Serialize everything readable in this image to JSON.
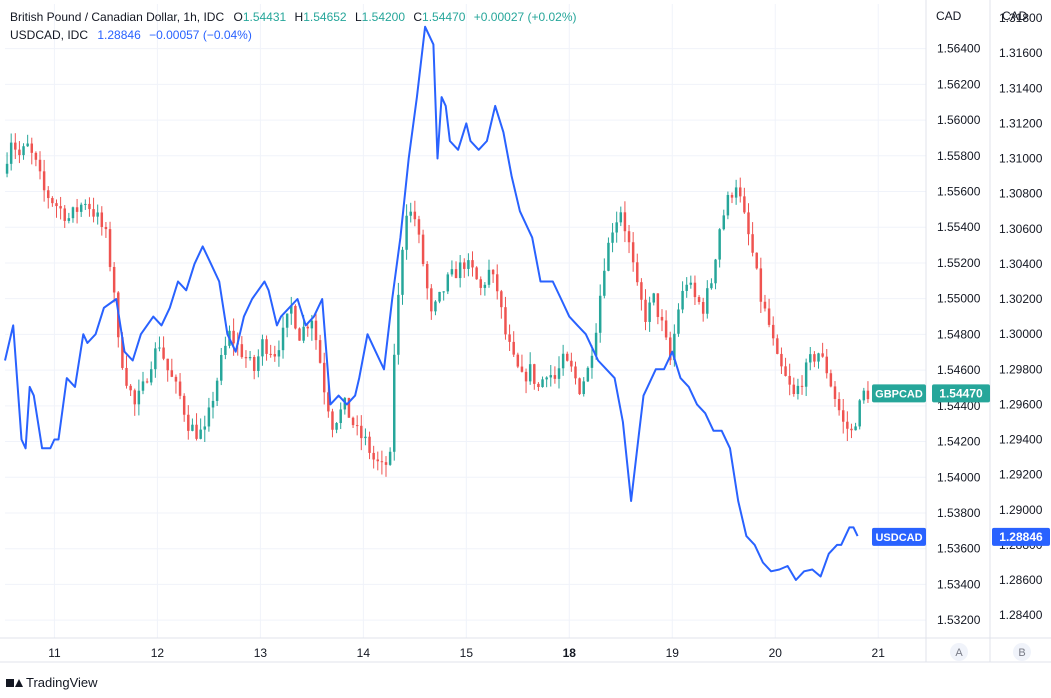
{
  "legend": {
    "symbol": "British Pound / Canadian Dollar, 1h, IDC",
    "o_key": "O",
    "o_val": "1.54431",
    "h_key": "H",
    "h_val": "1.54652",
    "l_key": "L",
    "l_val": "1.54200",
    "c_key": "C",
    "c_val": "1.54470",
    "change": "+0.00027 (+0.02%)",
    "symbol2": "USDCAD, IDC",
    "s2_val": "1.28846",
    "s2_change": "−0.00057 (−0.04%)"
  },
  "footer": {
    "brand": "TradingView"
  },
  "colors": {
    "up": "#26a69a",
    "down": "#ef5350",
    "line": "#2962ff",
    "grid": "#f0f3fa",
    "axis_text": "#131722",
    "border": "#e0e3eb"
  },
  "chart_data": {
    "type": "candlestick+line",
    "x_ticks": [
      {
        "i": 12,
        "label": "11",
        "bold": false
      },
      {
        "i": 37,
        "label": "12",
        "bold": false
      },
      {
        "i": 62,
        "label": "13",
        "bold": false
      },
      {
        "i": 87,
        "label": "14",
        "bold": false
      },
      {
        "i": 112,
        "label": "15",
        "bold": false
      },
      {
        "i": 137,
        "label": "18",
        "bold": true
      },
      {
        "i": 162,
        "label": "19",
        "bold": false
      },
      {
        "i": 187,
        "label": "20",
        "bold": false
      },
      {
        "i": 212,
        "label": "21",
        "bold": false
      }
    ],
    "axis_a": {
      "label": "CAD",
      "footer": "A",
      "min": 1.531,
      "max": 1.5665,
      "ticks": [
        "1.56400",
        "1.56200",
        "1.56000",
        "1.55800",
        "1.55600",
        "1.55400",
        "1.55200",
        "1.55000",
        "1.54800",
        "1.54600",
        "1.54400",
        "1.54200",
        "1.54000",
        "1.53800",
        "1.53600",
        "1.53400",
        "1.53200"
      ],
      "badge_name": "GBPCAD",
      "badge_value": "1.54470"
    },
    "axis_b": {
      "label": "CAD",
      "footer": "B",
      "min": 1.2827,
      "max": 1.3188,
      "ticks": [
        "1.31800",
        "1.31600",
        "1.31400",
        "1.31200",
        "1.31000",
        "1.30800",
        "1.30600",
        "1.30400",
        "1.30200",
        "1.30000",
        "1.29800",
        "1.29600",
        "1.29400",
        "1.29200",
        "1.29000",
        "1.28800",
        "1.28600",
        "1.28400"
      ],
      "badge_name": "USDCAD",
      "badge_value": "1.28846"
    },
    "series": [
      {
        "name": "British Pound / Canadian Dollar, 1h, IDC",
        "kind": "candlestick",
        "anchors": [
          [
            0,
            1.557
          ],
          [
            2,
            1.559
          ],
          [
            4,
            1.558
          ],
          [
            6,
            1.5585
          ],
          [
            8,
            1.5575
          ],
          [
            10,
            1.556
          ],
          [
            14,
            1.555
          ],
          [
            16,
            1.5545
          ],
          [
            20,
            1.5555
          ],
          [
            23,
            1.5545
          ],
          [
            25,
            1.5535
          ],
          [
            27,
            1.5505
          ],
          [
            28,
            1.5475
          ],
          [
            30,
            1.5455
          ],
          [
            32,
            1.544
          ],
          [
            34,
            1.545
          ],
          [
            36,
            1.5465
          ],
          [
            38,
            1.5475
          ],
          [
            40,
            1.546
          ],
          [
            43,
            1.5445
          ],
          [
            45,
            1.543
          ],
          [
            47,
            1.5425
          ],
          [
            49,
            1.5425
          ],
          [
            51,
            1.5445
          ],
          [
            53,
            1.5465
          ],
          [
            55,
            1.548
          ],
          [
            58,
            1.547
          ],
          [
            61,
            1.546
          ],
          [
            63,
            1.5475
          ],
          [
            66,
            1.547
          ],
          [
            68,
            1.548
          ],
          [
            70,
            1.5495
          ],
          [
            72,
            1.548
          ],
          [
            75,
            1.549
          ],
          [
            77,
            1.5465
          ],
          [
            78,
            1.545
          ],
          [
            80,
            1.543
          ],
          [
            83,
            1.544
          ],
          [
            86,
            1.5425
          ],
          [
            88,
            1.542
          ],
          [
            90,
            1.541
          ],
          [
            92,
            1.5405
          ],
          [
            94,
            1.541
          ],
          [
            95,
            1.547
          ],
          [
            96,
            1.55
          ],
          [
            97,
            1.553
          ],
          [
            98,
            1.555
          ],
          [
            100,
            1.5545
          ],
          [
            102,
            1.552
          ],
          [
            104,
            1.549
          ],
          [
            106,
            1.55
          ],
          [
            108,
            1.551
          ],
          [
            110,
            1.5515
          ],
          [
            112,
            1.552
          ],
          [
            114,
            1.5515
          ],
          [
            116,
            1.5505
          ],
          [
            118,
            1.5515
          ],
          [
            120,
            1.5505
          ],
          [
            122,
            1.548
          ],
          [
            124,
            1.5465
          ],
          [
            126,
            1.5455
          ],
          [
            128,
            1.546
          ],
          [
            130,
            1.545
          ],
          [
            132,
            1.546
          ],
          [
            134,
            1.5455
          ],
          [
            136,
            1.5465
          ],
          [
            138,
            1.546
          ],
          [
            140,
            1.545
          ],
          [
            142,
            1.546
          ],
          [
            144,
            1.5485
          ],
          [
            146,
            1.552
          ],
          [
            148,
            1.554
          ],
          [
            150,
            1.555
          ],
          [
            152,
            1.553
          ],
          [
            154,
            1.5505
          ],
          [
            156,
            1.549
          ],
          [
            158,
            1.55
          ],
          [
            160,
            1.5485
          ],
          [
            162,
            1.5465
          ],
          [
            164,
            1.5495
          ],
          [
            166,
            1.551
          ],
          [
            168,
            1.55
          ],
          [
            170,
            1.5495
          ],
          [
            172,
            1.551
          ],
          [
            174,
            1.554
          ],
          [
            176,
            1.5555
          ],
          [
            178,
            1.5565
          ],
          [
            180,
            1.5545
          ],
          [
            182,
            1.5525
          ],
          [
            184,
            1.55
          ],
          [
            186,
            1.5485
          ],
          [
            188,
            1.5465
          ],
          [
            190,
            1.5455
          ],
          [
            192,
            1.5445
          ],
          [
            194,
            1.5455
          ],
          [
            196,
            1.5465
          ],
          [
            198,
            1.547
          ],
          [
            200,
            1.546
          ],
          [
            202,
            1.5445
          ],
          [
            204,
            1.543
          ],
          [
            206,
            1.5425
          ],
          [
            208,
            1.544
          ],
          [
            209,
            1.5447
          ]
        ]
      },
      {
        "name": "USDCAD, IDC",
        "kind": "line",
        "values": [
          [
            0,
            1.2985
          ],
          [
            2,
            1.3005
          ],
          [
            4,
            1.294
          ],
          [
            5,
            1.2935
          ],
          [
            6,
            1.297
          ],
          [
            7,
            1.2965
          ],
          [
            9,
            1.2935
          ],
          [
            11,
            1.2935
          ],
          [
            12,
            1.294
          ],
          [
            13,
            1.294
          ],
          [
            15,
            1.2975
          ],
          [
            17,
            1.297
          ],
          [
            19,
            1.3
          ],
          [
            20,
            1.2995
          ],
          [
            22,
            1.3
          ],
          [
            24,
            1.3015
          ],
          [
            27,
            1.302
          ],
          [
            29,
            1.299
          ],
          [
            31,
            1.2985
          ],
          [
            33,
            1.3
          ],
          [
            36,
            1.301
          ],
          [
            38,
            1.3005
          ],
          [
            40,
            1.3015
          ],
          [
            42,
            1.303
          ],
          [
            44,
            1.3025
          ],
          [
            46,
            1.304
          ],
          [
            48,
            1.305
          ],
          [
            50,
            1.304
          ],
          [
            52,
            1.303
          ],
          [
            54,
            1.3
          ],
          [
            56,
            1.299
          ],
          [
            58,
            1.301
          ],
          [
            60,
            1.302
          ],
          [
            63,
            1.303
          ],
          [
            64,
            1.3025
          ],
          [
            66,
            1.3005
          ],
          [
            67,
            1.301
          ],
          [
            69,
            1.3015
          ],
          [
            71,
            1.302
          ],
          [
            73,
            1.3005
          ],
          [
            75,
            1.301
          ],
          [
            77,
            1.302
          ],
          [
            79,
            1.296
          ],
          [
            81,
            1.2965
          ],
          [
            83,
            1.296
          ],
          [
            85,
            1.2965
          ],
          [
            86,
            1.2975
          ],
          [
            88,
            1.3
          ],
          [
            90,
            1.299
          ],
          [
            92,
            1.298
          ],
          [
            94,
            1.302
          ],
          [
            96,
            1.3055
          ],
          [
            98,
            1.31
          ],
          [
            100,
            1.3135
          ],
          [
            102,
            1.3175
          ],
          [
            104,
            1.3165
          ],
          [
            105,
            1.31
          ],
          [
            106,
            1.3135
          ],
          [
            107,
            1.313
          ],
          [
            108,
            1.311
          ],
          [
            110,
            1.3105
          ],
          [
            112,
            1.312
          ],
          [
            113,
            1.311
          ],
          [
            115,
            1.3105
          ],
          [
            117,
            1.311
          ],
          [
            119,
            1.313
          ],
          [
            121,
            1.3115
          ],
          [
            123,
            1.309
          ],
          [
            125,
            1.307
          ],
          [
            127,
            1.306
          ],
          [
            128,
            1.3055
          ],
          [
            130,
            1.303
          ],
          [
            131,
            1.303
          ],
          [
            133,
            1.303
          ],
          [
            135,
            1.302
          ],
          [
            137,
            1.301
          ],
          [
            139,
            1.3005
          ],
          [
            141,
            1.3
          ],
          [
            143,
            1.299
          ],
          [
            144,
            1.2985
          ],
          [
            146,
            1.298
          ],
          [
            148,
            1.2975
          ],
          [
            150,
            1.295
          ],
          [
            152,
            1.2905
          ],
          [
            154,
            1.2945
          ],
          [
            155,
            1.2965
          ],
          [
            156,
            1.297
          ],
          [
            158,
            1.298
          ],
          [
            160,
            1.298
          ],
          [
            162,
            1.299
          ],
          [
            164,
            1.2975
          ],
          [
            166,
            1.297
          ],
          [
            168,
            1.296
          ],
          [
            170,
            1.2955
          ],
          [
            172,
            1.2945
          ],
          [
            174,
            1.2945
          ],
          [
            176,
            1.2935
          ],
          [
            178,
            1.2905
          ],
          [
            180,
            1.2885
          ],
          [
            182,
            1.288
          ],
          [
            184,
            1.287
          ],
          [
            186,
            1.2865
          ],
          [
            188,
            1.2866
          ],
          [
            190,
            1.2868
          ],
          [
            192,
            1.286
          ],
          [
            194,
            1.2865
          ],
          [
            196,
            1.2866
          ],
          [
            198,
            1.2862
          ],
          [
            200,
            1.2875
          ],
          [
            202,
            1.288
          ],
          [
            203,
            1.288
          ],
          [
            205,
            1.289
          ],
          [
            206,
            1.289
          ],
          [
            207,
            1.2885
          ]
        ]
      }
    ]
  }
}
